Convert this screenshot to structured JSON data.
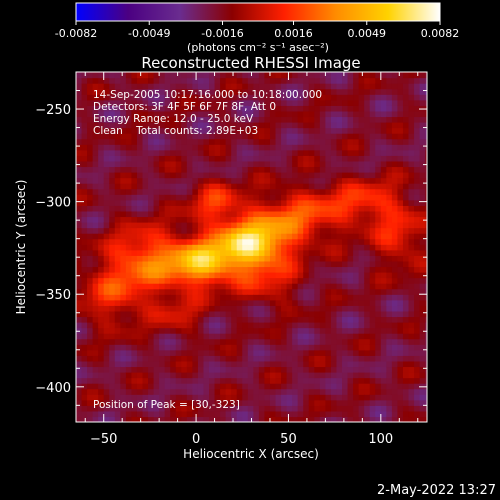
{
  "chart_data": {
    "type": "heatmap",
    "title": "Reconstructed RHESSI Image",
    "xlabel": "Heliocentric X (arcsec)",
    "ylabel": "Heliocentric Y (arcsec)",
    "xlim": [
      -65,
      125
    ],
    "ylim": [
      -419,
      -230
    ],
    "x_ticks": [
      -50,
      0,
      50,
      100
    ],
    "y_ticks": [
      -250,
      -300,
      -350,
      -400
    ],
    "colorbar": {
      "min": -0.0082,
      "max": 0.0082,
      "tick_values": [
        -0.0082,
        -0.0049,
        -0.0016,
        0.0016,
        0.0049,
        0.0082
      ],
      "tick_labels": [
        "-0.0082",
        "-0.0049",
        "-0.0016",
        "0.0016",
        "0.0049",
        "0.0082"
      ],
      "units": "(photons cm⁻² s⁻¹ asec⁻²)",
      "colors": [
        "#0000ff",
        "#4b0082",
        "#6a2c8f",
        "#8b0000",
        "#ff2000",
        "#ff8c00",
        "#ffd200",
        "#ffffff"
      ]
    },
    "annotations": [
      "14-Sep-2005 10:17:16.000 to 10:18:00.000",
      "Detectors: 3F 4F 5F 6F 7F 8F, Att 0",
      "Energy Range: 12.0 - 25.0 keV",
      "Clean    Total counts: 2.89E+03"
    ],
    "peak_label": "Position of Peak = [30,-323]",
    "peak": [
      30,
      -323
    ],
    "sources": [
      {
        "x": 30,
        "y": -323,
        "sx": 14,
        "sy": 10,
        "amp": 0.0082
      },
      {
        "x": 2,
        "y": -333,
        "sx": 13,
        "sy": 9,
        "amp": 0.0066
      },
      {
        "x": -28,
        "y": -330,
        "sx": 14,
        "sy": 12,
        "amp": 0.004
      },
      {
        "x": 55,
        "y": -308,
        "sx": 16,
        "sy": 10,
        "amp": 0.0036
      },
      {
        "x": 92,
        "y": -300,
        "sx": 16,
        "sy": 9,
        "amp": 0.003
      },
      {
        "x": 110,
        "y": -320,
        "sx": 10,
        "sy": 12,
        "amp": 0.0026
      },
      {
        "x": -45,
        "y": -350,
        "sx": 14,
        "sy": 12,
        "amp": 0.0028
      },
      {
        "x": 10,
        "y": -300,
        "sx": 10,
        "sy": 8,
        "amp": 0.003
      },
      {
        "x": 40,
        "y": -345,
        "sx": 12,
        "sy": 8,
        "amp": 0.002
      },
      {
        "x": -10,
        "y": -360,
        "sx": 10,
        "sy": 8,
        "amp": 0.0018
      }
    ]
  },
  "timestamp": "2-May-2022 13:27"
}
